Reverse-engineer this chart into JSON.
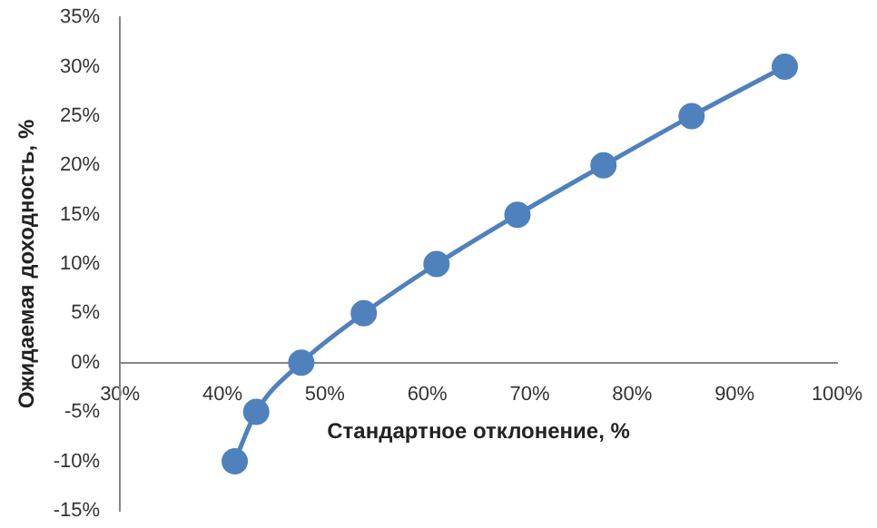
{
  "chart_data": {
    "type": "line",
    "xlabel": "Стандартное отклонение, %",
    "ylabel": "Ожидаемая доходность, %",
    "x": [
      41.2,
      43.3,
      47.7,
      53.8,
      60.9,
      68.8,
      77.2,
      85.8,
      94.9
    ],
    "series": [
      {
        "color": "#4f81bd",
        "values": [
          -10,
          -5,
          0,
          5,
          10,
          15,
          20,
          25,
          30
        ]
      }
    ],
    "xlim": [
      30,
      100
    ],
    "xticks": [
      {
        "value": 30,
        "label": "30%"
      },
      {
        "value": 40,
        "label": "40%"
      },
      {
        "value": 50,
        "label": "50%"
      },
      {
        "value": 60,
        "label": "60%"
      },
      {
        "value": 70,
        "label": "70%"
      },
      {
        "value": 80,
        "label": "80%"
      },
      {
        "value": 90,
        "label": "90%"
      },
      {
        "value": 100,
        "label": "100%"
      }
    ],
    "ylim": [
      -15,
      35
    ],
    "yticks": [
      {
        "value": -15,
        "label": "-15%"
      },
      {
        "value": -10,
        "label": "-10%"
      },
      {
        "value": -5,
        "label": "-5%"
      },
      {
        "value": 0,
        "label": "0%"
      },
      {
        "value": 5,
        "label": "5%"
      },
      {
        "value": 10,
        "label": "10%"
      },
      {
        "value": 15,
        "label": "15%"
      },
      {
        "value": 20,
        "label": "20%"
      },
      {
        "value": 25,
        "label": "25%"
      },
      {
        "value": 30,
        "label": "30%"
      },
      {
        "value": 35,
        "label": "35%"
      }
    ],
    "grid": false,
    "legend": false,
    "marker": "circle",
    "line_style": "solid"
  }
}
